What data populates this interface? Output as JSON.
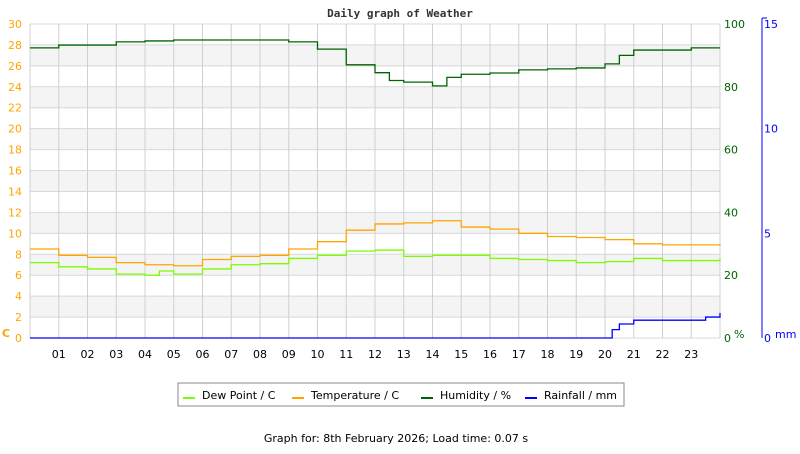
{
  "chart_data": {
    "type": "line",
    "title": "Daily graph of Weather",
    "footer": "Graph for: 8th February 2026; Load time: 0.07 s",
    "x_ticks": [
      "01",
      "02",
      "03",
      "04",
      "05",
      "06",
      "07",
      "08",
      "09",
      "10",
      "11",
      "12",
      "13",
      "14",
      "15",
      "16",
      "17",
      "18",
      "19",
      "20",
      "21",
      "22",
      "23"
    ],
    "xlim": [
      0,
      24
    ],
    "grid": true,
    "legend_placement": "bottom",
    "axes": {
      "left": {
        "label": "C",
        "ylim": [
          0,
          30
        ],
        "ticks": [
          "0",
          "2",
          "4",
          "6",
          "8",
          "10",
          "12",
          "14",
          "16",
          "18",
          "20",
          "22",
          "24",
          "26",
          "28",
          "30"
        ],
        "color": "#ffa500"
      },
      "right1": {
        "label": "%",
        "ylim": [
          0,
          100
        ],
        "ticks": [
          "0",
          "20",
          "40",
          "60",
          "80",
          "100"
        ],
        "color": "#006400"
      },
      "right2": {
        "label": "mm",
        "ylim": [
          0,
          15
        ],
        "ticks": [
          "0",
          "5",
          "10",
          "15"
        ],
        "color": "#0000ff"
      }
    },
    "series": [
      {
        "name": "Dew Point / C",
        "axis": "left",
        "color": "#7cfc00",
        "x": [
          0,
          1,
          2,
          3,
          4,
          4.5,
          5,
          6,
          7,
          8,
          9,
          10,
          11,
          12,
          13,
          14,
          15,
          16,
          17,
          18,
          19,
          20,
          21,
          22,
          23,
          24
        ],
        "values": [
          7.2,
          6.8,
          6.6,
          6.1,
          6.0,
          6.4,
          6.1,
          6.6,
          7.0,
          7.1,
          7.6,
          7.9,
          8.3,
          8.4,
          7.8,
          7.9,
          7.9,
          7.6,
          7.5,
          7.4,
          7.2,
          7.3,
          7.6,
          7.4,
          7.4,
          7.6
        ]
      },
      {
        "name": "Temperature / C",
        "axis": "left",
        "color": "#ffa500",
        "x": [
          0,
          1,
          2,
          3,
          4,
          5,
          6,
          7,
          8,
          9,
          10,
          11,
          12,
          13,
          14,
          15,
          16,
          17,
          18,
          19,
          20,
          21,
          22,
          23,
          24
        ],
        "values": [
          8.5,
          7.9,
          7.7,
          7.2,
          7.0,
          6.9,
          7.5,
          7.8,
          7.9,
          8.5,
          9.2,
          10.3,
          10.9,
          11.0,
          11.2,
          10.6,
          10.4,
          10.0,
          9.7,
          9.6,
          9.4,
          9.0,
          8.9,
          8.9,
          8.8
        ]
      },
      {
        "name": "Humidity / %",
        "axis": "right1",
        "color": "#006400",
        "x": [
          0,
          1,
          2,
          3,
          4,
          5,
          6,
          7,
          8,
          9,
          10,
          11,
          12,
          12.5,
          13,
          14,
          14.5,
          15,
          16,
          17,
          18,
          19,
          20,
          20.5,
          21,
          22,
          23,
          24
        ],
        "values": [
          92.4,
          93.3,
          93.3,
          94.3,
          94.6,
          94.9,
          94.9,
          94.9,
          94.9,
          94.3,
          92.0,
          87.0,
          84.5,
          82.0,
          81.5,
          80.3,
          83.0,
          84.0,
          84.4,
          85.4,
          85.7,
          86.0,
          87.3,
          90.0,
          91.7,
          91.7,
          92.4,
          92.4
        ]
      },
      {
        "name": "Rainfall / mm",
        "axis": "right2",
        "color": "#0000ff",
        "x": [
          0,
          20,
          20.25,
          20.5,
          21,
          22,
          23,
          23.5,
          24
        ],
        "values": [
          0,
          0,
          0.4,
          0.67,
          0.85,
          0.85,
          0.85,
          1.0,
          1.2
        ]
      }
    ]
  }
}
